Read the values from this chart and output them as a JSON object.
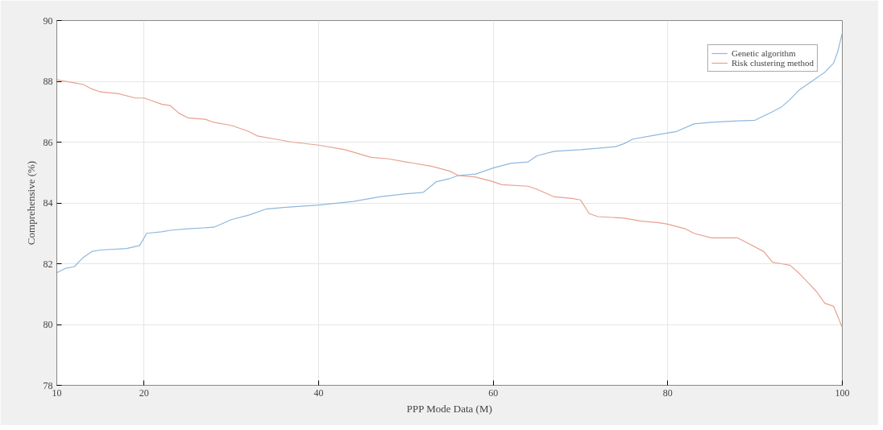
{
  "chart_data": {
    "type": "line",
    "xlabel": "PPP Mode Data (M)",
    "ylabel": "Comprehensive (%)",
    "xlim": [
      10,
      100
    ],
    "xticks": [
      10,
      20,
      40,
      60,
      80,
      100
    ],
    "ylim": [
      78,
      90
    ],
    "yticks": [
      78,
      80,
      82,
      84,
      86,
      88,
      90
    ],
    "grid": true,
    "legend": "top right",
    "line_style": "solid",
    "marker": "none",
    "series": [
      {
        "name": "Genetic algorithm",
        "color": "#8fb8de",
        "x": [
          10,
          11,
          12,
          13,
          14,
          15,
          18,
          19.5,
          20.3,
          22,
          23,
          25,
          28,
          30,
          32,
          34,
          36,
          40,
          44,
          47,
          50,
          52,
          53.5,
          55,
          56,
          58,
          60,
          62,
          64,
          65,
          67,
          70,
          72,
          74,
          75,
          76,
          78,
          80,
          81,
          83,
          85,
          88,
          90,
          92,
          93,
          94,
          95,
          97,
          98,
          99,
          99.5,
          100
        ],
        "values": [
          81.7,
          81.85,
          81.9,
          82.2,
          82.4,
          82.45,
          82.5,
          82.6,
          83.0,
          83.05,
          83.1,
          83.15,
          83.2,
          83.45,
          83.6,
          83.8,
          83.85,
          83.93,
          84.05,
          84.2,
          84.3,
          84.35,
          84.7,
          84.8,
          84.9,
          84.95,
          85.15,
          85.3,
          85.35,
          85.55,
          85.7,
          85.75,
          85.8,
          85.85,
          85.95,
          86.1,
          86.2,
          86.3,
          86.35,
          86.6,
          86.65,
          86.7,
          86.72,
          87.0,
          87.15,
          87.4,
          87.7,
          88.1,
          88.3,
          88.6,
          89.0,
          89.6
        ]
      },
      {
        "name": "Risk clustering method",
        "color": "#e8a090",
        "x": [
          10,
          12,
          13,
          14,
          15,
          17,
          19,
          20,
          21,
          22,
          23,
          24,
          25,
          27,
          28,
          30,
          32,
          33,
          35,
          37,
          40,
          43,
          46,
          48,
          50,
          53,
          55,
          56,
          58,
          60,
          61,
          64,
          65,
          67,
          69,
          70,
          71,
          72,
          75,
          77,
          79,
          80,
          82,
          83,
          85,
          88,
          89,
          91,
          92,
          93,
          94,
          95,
          96,
          97,
          98,
          99,
          100
        ],
        "values": [
          88.05,
          87.95,
          87.9,
          87.75,
          87.65,
          87.6,
          87.45,
          87.45,
          87.35,
          87.25,
          87.2,
          86.95,
          86.8,
          86.75,
          86.65,
          86.55,
          86.35,
          86.2,
          86.1,
          86.0,
          85.9,
          85.75,
          85.5,
          85.45,
          85.35,
          85.2,
          85.05,
          84.9,
          84.85,
          84.7,
          84.6,
          84.55,
          84.45,
          84.2,
          84.15,
          84.1,
          83.65,
          83.55,
          83.5,
          83.4,
          83.35,
          83.3,
          83.15,
          83.0,
          82.85,
          82.85,
          82.7,
          82.4,
          82.05,
          82.0,
          81.95,
          81.7,
          81.4,
          81.1,
          80.7,
          80.6,
          79.9
        ]
      }
    ]
  }
}
